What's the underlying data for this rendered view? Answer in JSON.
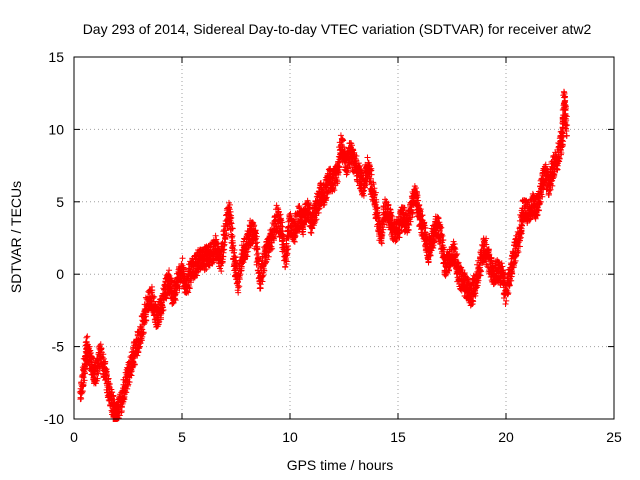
{
  "chart_data": {
    "type": "scatter",
    "title": "Day 293 of 2014, Sidereal Day-to-day VTEC variation (SDTVAR) for receiver atw2",
    "xlabel": "GPS time / hours",
    "ylabel": "SDTVAR / TECUs",
    "xlim": [
      0,
      25
    ],
    "ylim": [
      -10,
      15
    ],
    "x_ticks": [
      0,
      5,
      10,
      15,
      20,
      25
    ],
    "y_ticks": [
      -10,
      -5,
      0,
      5,
      10,
      15
    ],
    "grid": true,
    "marker": "plus",
    "colors": {
      "series": "#ff0000",
      "grid": "#a0a0a0",
      "axes": "#000000"
    },
    "series": [
      {
        "name": "SDTVAR",
        "anchors": [
          [
            0.3,
            -8.3
          ],
          [
            0.5,
            -6.4
          ],
          [
            0.6,
            -5.0
          ],
          [
            0.8,
            -6.3
          ],
          [
            1.0,
            -7.0
          ],
          [
            1.2,
            -5.5
          ],
          [
            1.4,
            -6.4
          ],
          [
            1.6,
            -8.0
          ],
          [
            1.8,
            -9.1
          ],
          [
            1.9,
            -9.8
          ],
          [
            2.0,
            -9.7
          ],
          [
            2.2,
            -8.8
          ],
          [
            2.4,
            -7.5
          ],
          [
            2.6,
            -6.5
          ],
          [
            2.8,
            -5.5
          ],
          [
            3.0,
            -4.5
          ],
          [
            3.2,
            -3.5
          ],
          [
            3.4,
            -2.0
          ],
          [
            3.6,
            -1.5
          ],
          [
            3.8,
            -3.0
          ],
          [
            4.0,
            -2.5
          ],
          [
            4.2,
            -1.2
          ],
          [
            4.4,
            -0.5
          ],
          [
            4.6,
            -1.5
          ],
          [
            4.8,
            -0.5
          ],
          [
            5.0,
            0.3
          ],
          [
            5.2,
            -1.0
          ],
          [
            5.4,
            0.2
          ],
          [
            5.6,
            0.5
          ],
          [
            5.8,
            1.0
          ],
          [
            6.0,
            1.0
          ],
          [
            6.2,
            1.2
          ],
          [
            6.4,
            1.5
          ],
          [
            6.6,
            2.0
          ],
          [
            6.8,
            1.0
          ],
          [
            7.0,
            3.0
          ],
          [
            7.2,
            4.5
          ],
          [
            7.4,
            1.0
          ],
          [
            7.6,
            -0.5
          ],
          [
            7.8,
            1.5
          ],
          [
            8.0,
            2.0
          ],
          [
            8.2,
            3.0
          ],
          [
            8.4,
            2.5
          ],
          [
            8.6,
            -0.5
          ],
          [
            8.8,
            1.0
          ],
          [
            9.0,
            2.0
          ],
          [
            9.2,
            2.5
          ],
          [
            9.4,
            4.0
          ],
          [
            9.6,
            3.0
          ],
          [
            9.8,
            1.0
          ],
          [
            10.0,
            3.5
          ],
          [
            10.2,
            3.0
          ],
          [
            10.4,
            4.0
          ],
          [
            10.6,
            3.5
          ],
          [
            10.8,
            4.5
          ],
          [
            11.0,
            3.5
          ],
          [
            11.2,
            4.5
          ],
          [
            11.4,
            5.5
          ],
          [
            11.6,
            5.5
          ],
          [
            11.8,
            6.5
          ],
          [
            12.0,
            6.5
          ],
          [
            12.2,
            7.0
          ],
          [
            12.4,
            9.0
          ],
          [
            12.6,
            7.5
          ],
          [
            12.8,
            8.5
          ],
          [
            13.0,
            7.5
          ],
          [
            13.2,
            7.0
          ],
          [
            13.4,
            6.0
          ],
          [
            13.6,
            7.5
          ],
          [
            13.8,
            6.0
          ],
          [
            14.0,
            4.5
          ],
          [
            14.2,
            2.5
          ],
          [
            14.4,
            4.5
          ],
          [
            14.6,
            4.0
          ],
          [
            14.8,
            3.0
          ],
          [
            15.0,
            3.0
          ],
          [
            15.2,
            4.0
          ],
          [
            15.4,
            3.5
          ],
          [
            15.6,
            4.5
          ],
          [
            15.8,
            5.5
          ],
          [
            16.0,
            4.0
          ],
          [
            16.2,
            3.0
          ],
          [
            16.4,
            1.5
          ],
          [
            16.6,
            2.5
          ],
          [
            16.8,
            3.5
          ],
          [
            17.0,
            2.5
          ],
          [
            17.2,
            0.5
          ],
          [
            17.4,
            1.0
          ],
          [
            17.6,
            1.5
          ],
          [
            17.8,
            0.0
          ],
          [
            18.0,
            -0.5
          ],
          [
            18.2,
            -1.0
          ],
          [
            18.4,
            -1.5
          ],
          [
            18.6,
            -0.5
          ],
          [
            18.8,
            0.5
          ],
          [
            19.0,
            2.0
          ],
          [
            19.2,
            1.0
          ],
          [
            19.4,
            0.0
          ],
          [
            19.6,
            0.3
          ],
          [
            19.8,
            0.0
          ],
          [
            20.0,
            -1.5
          ],
          [
            20.2,
            0.2
          ],
          [
            20.4,
            1.5
          ],
          [
            20.6,
            2.5
          ],
          [
            20.8,
            4.5
          ],
          [
            21.0,
            4.3
          ],
          [
            21.2,
            4.8
          ],
          [
            21.4,
            4.5
          ],
          [
            21.6,
            5.5
          ],
          [
            21.8,
            7.0
          ],
          [
            22.0,
            6.0
          ],
          [
            22.2,
            7.5
          ],
          [
            22.4,
            8.0
          ],
          [
            22.6,
            9.5
          ],
          [
            22.7,
            12.0
          ],
          [
            22.8,
            10.0
          ]
        ]
      }
    ]
  }
}
